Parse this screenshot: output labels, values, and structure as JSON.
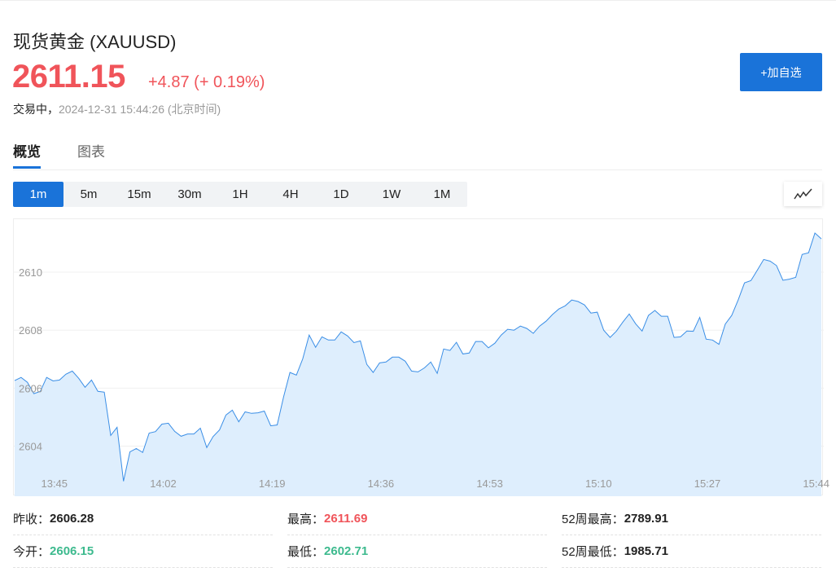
{
  "header": {
    "title": "现货黄金 (XAUUSD)",
    "price": "2611.15",
    "change": "+4.87 (+ 0.19%)",
    "status_label": "交易中，",
    "timestamp": "2024-12-31 15:44:26 (北京时间)",
    "add_watchlist": "+加自选"
  },
  "tabs": [
    {
      "label": "概览",
      "active": true
    },
    {
      "label": "图表",
      "active": false
    }
  ],
  "periods": [
    {
      "label": "1m",
      "active": true
    },
    {
      "label": "5m"
    },
    {
      "label": "15m"
    },
    {
      "label": "30m"
    },
    {
      "label": "1H"
    },
    {
      "label": "4H"
    },
    {
      "label": "1D"
    },
    {
      "label": "1W"
    },
    {
      "label": "1M"
    }
  ],
  "chart_type_icon": "line-chart-icon",
  "colors": {
    "accent": "#1a73d9",
    "up": "#f0545a",
    "down": "#3dba8e",
    "line": "#3a8ee6",
    "fill": "#deeefd"
  },
  "chart_data": {
    "type": "area",
    "interval": "1m",
    "ylim": [
      2602.3,
      2611.8
    ],
    "y_ticks": [
      2604,
      2606,
      2608,
      2610
    ],
    "x_ticks": [
      "13:45",
      "14:02",
      "14:19",
      "14:36",
      "14:53",
      "15:10",
      "15:27",
      "15:44"
    ],
    "grid": true,
    "values": [
      2606.26,
      2606.37,
      2606.2,
      2605.81,
      2605.89,
      2606.37,
      2606.25,
      2606.28,
      2606.48,
      2606.59,
      2606.34,
      2606.03,
      2606.28,
      2605.89,
      2605.86,
      2604.37,
      2604.65,
      2602.79,
      2603.8,
      2603.92,
      2603.78,
      2604.45,
      2604.5,
      2604.76,
      2604.79,
      2604.51,
      2604.34,
      2604.42,
      2604.42,
      2604.62,
      2603.95,
      2604.33,
      2604.56,
      2605.07,
      2605.24,
      2604.84,
      2605.18,
      2605.13,
      2605.15,
      2605.21,
      2604.7,
      2604.73,
      2605.69,
      2606.54,
      2606.45,
      2607.01,
      2607.83,
      2607.41,
      2607.77,
      2607.66,
      2607.66,
      2607.94,
      2607.8,
      2607.57,
      2607.63,
      2606.82,
      2606.54,
      2606.87,
      2606.9,
      2607.07,
      2607.07,
      2606.93,
      2606.59,
      2606.56,
      2606.7,
      2606.9,
      2606.51,
      2607.35,
      2607.3,
      2607.58,
      2607.18,
      2607.21,
      2607.61,
      2607.61,
      2607.39,
      2607.55,
      2607.83,
      2608.03,
      2608.0,
      2608.14,
      2608.06,
      2607.89,
      2608.14,
      2608.31,
      2608.54,
      2608.73,
      2608.84,
      2609.04,
      2608.99,
      2608.87,
      2608.59,
      2608.62,
      2608.0,
      2607.75,
      2607.97,
      2608.28,
      2608.56,
      2608.22,
      2607.97,
      2608.51,
      2608.68,
      2608.48,
      2608.48,
      2607.75,
      2607.77,
      2607.97,
      2607.96,
      2608.44,
      2607.69,
      2607.66,
      2607.51,
      2608.21,
      2608.51,
      2609.04,
      2609.63,
      2609.71,
      2610.07,
      2610.44,
      2610.38,
      2610.23,
      2609.72,
      2609.76,
      2609.82,
      2610.61,
      2610.67,
      2611.35,
      2611.15
    ]
  },
  "stats": {
    "prev_close": {
      "label": "昨收：",
      "value": "2606.28"
    },
    "high": {
      "label": "最高：",
      "value": "2611.69"
    },
    "high52": {
      "label": "52周最高：",
      "value": "2789.91"
    },
    "open": {
      "label": "今开：",
      "value": "2606.15"
    },
    "low": {
      "label": "最低：",
      "value": "2602.71"
    },
    "low52": {
      "label": "52周最低：",
      "value": "1985.71"
    }
  }
}
